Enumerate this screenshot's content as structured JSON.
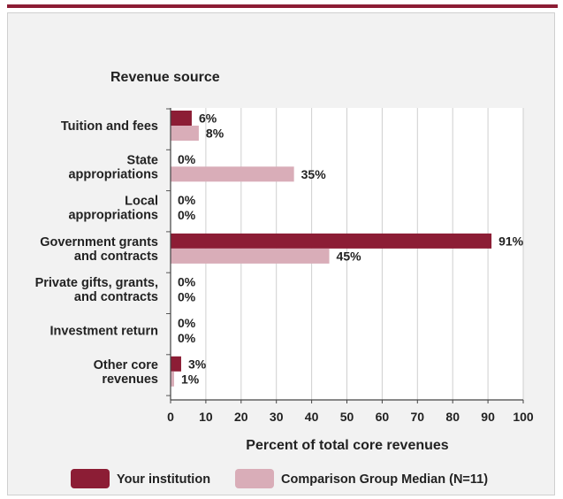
{
  "chart_data": {
    "type": "bar",
    "orientation": "horizontal",
    "title": "Revenue source",
    "xlabel": "Percent of total core revenues",
    "ylabel": "",
    "xlim": [
      0,
      100
    ],
    "xticks": [
      0,
      10,
      20,
      30,
      40,
      50,
      60,
      70,
      80,
      90,
      100
    ],
    "grid": true,
    "legend_placement": "bottom",
    "categories": [
      [
        "Tuition and fees"
      ],
      [
        "State",
        "appropriations"
      ],
      [
        "Local",
        "appropriations"
      ],
      [
        "Government grants",
        "and contracts"
      ],
      [
        "Private gifts, grants,",
        "and contracts"
      ],
      [
        "Investment return"
      ],
      [
        "Other core",
        "revenues"
      ]
    ],
    "series": [
      {
        "name": "Your institution",
        "color": "#8c1d35",
        "values": [
          6,
          0,
          0,
          91,
          0,
          0,
          3
        ],
        "labels": [
          "6%",
          "0%",
          "0%",
          "91%",
          "0%",
          "0%",
          "3%"
        ]
      },
      {
        "name": "Comparison Group Median (N=11)",
        "color": "#d9adb8",
        "values": [
          8,
          35,
          0,
          45,
          0,
          0,
          1
        ],
        "labels": [
          "8%",
          "35%",
          "0%",
          "45%",
          "0%",
          "0%",
          "1%"
        ]
      }
    ]
  }
}
